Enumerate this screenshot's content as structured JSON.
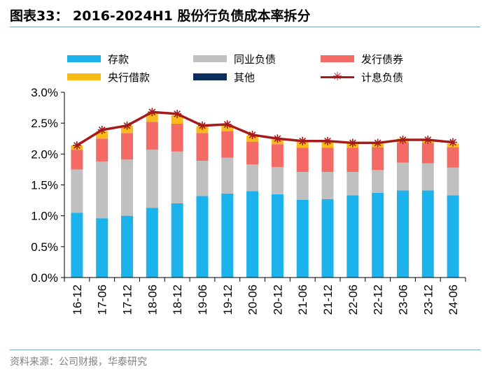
{
  "figure": {
    "title": "图表33：  2016-2024H1 股份行负债成本率拆分",
    "source": "资料来源：公司财报，华泰研究"
  },
  "colors": {
    "deposits": "#1cb2ec",
    "interbank": "#c0c0c0",
    "bonds": "#f36b64",
    "central_bank": "#f8bb1a",
    "other": "#0b2e5e",
    "interest_line": "#a51a1a",
    "axis": "#000000",
    "rule": "#7aa7c7",
    "source_text": "#7f7f7f"
  },
  "legend": [
    {
      "key": "deposits",
      "label": "存款",
      "kind": "bar"
    },
    {
      "key": "interbank",
      "label": "同业负债",
      "kind": "bar"
    },
    {
      "key": "bonds",
      "label": "发行债券",
      "kind": "bar"
    },
    {
      "key": "central_bank",
      "label": "央行借款",
      "kind": "bar"
    },
    {
      "key": "other",
      "label": "其他",
      "kind": "bar"
    },
    {
      "key": "interest_line",
      "label": "计息负债",
      "kind": "line"
    }
  ],
  "chart_data": {
    "type": "bar",
    "stacked": true,
    "title": "",
    "xlabel": "",
    "ylabel": "",
    "ylim": [
      0,
      3.0
    ],
    "yticks": [
      "0.0%",
      "0.5%",
      "1.0%",
      "1.5%",
      "2.0%",
      "2.5%",
      "3.0%"
    ],
    "y_unit": "%",
    "categories": [
      "16-12",
      "17-06",
      "17-12",
      "18-06",
      "18-12",
      "19-06",
      "19-12",
      "20-06",
      "20-12",
      "21-06",
      "21-12",
      "22-06",
      "22-12",
      "23-06",
      "23-12",
      "24-06"
    ],
    "series": [
      {
        "name": "存款",
        "key": "deposits",
        "values": [
          1.05,
          0.96,
          1.0,
          1.13,
          1.2,
          1.32,
          1.36,
          1.4,
          1.35,
          1.26,
          1.27,
          1.33,
          1.37,
          1.41,
          1.41,
          1.33
        ]
      },
      {
        "name": "同业负债",
        "key": "interbank",
        "values": [
          0.7,
          0.92,
          0.91,
          0.94,
          0.84,
          0.57,
          0.58,
          0.43,
          0.44,
          0.45,
          0.44,
          0.38,
          0.37,
          0.45,
          0.44,
          0.45
        ]
      },
      {
        "name": "发行债券",
        "key": "bonds",
        "values": [
          0.32,
          0.37,
          0.43,
          0.45,
          0.45,
          0.45,
          0.43,
          0.37,
          0.37,
          0.39,
          0.39,
          0.39,
          0.37,
          0.33,
          0.33,
          0.33
        ]
      },
      {
        "name": "央行借款",
        "key": "central_bank",
        "values": [
          0.07,
          0.12,
          0.12,
          0.15,
          0.14,
          0.11,
          0.1,
          0.1,
          0.08,
          0.1,
          0.1,
          0.08,
          0.06,
          0.06,
          0.06,
          0.06
        ]
      },
      {
        "name": "其他",
        "key": "other",
        "values": [
          0,
          0,
          0,
          0,
          0,
          0,
          0,
          0,
          0,
          0,
          0,
          0,
          0,
          0,
          0,
          0
        ]
      },
      {
        "name": "计息负债",
        "key": "interest_line",
        "type": "line",
        "values": [
          2.14,
          2.39,
          2.46,
          2.68,
          2.65,
          2.46,
          2.48,
          2.31,
          2.25,
          2.21,
          2.21,
          2.18,
          2.18,
          2.23,
          2.23,
          2.19
        ]
      }
    ]
  }
}
